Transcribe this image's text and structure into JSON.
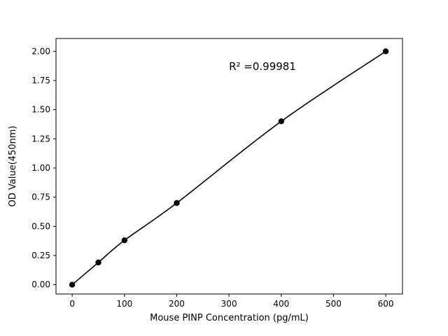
{
  "chart_data": {
    "type": "scatter",
    "title": "",
    "xlabel": "Mouse PINP Concentration (pg/mL)",
    "ylabel": "OD Value(450nm)",
    "x": [
      0,
      50,
      100,
      200,
      400,
      600
    ],
    "y": [
      0.0,
      0.19,
      0.38,
      0.7,
      1.4,
      2.0
    ],
    "xlim": [
      -31,
      632
    ],
    "ylim": [
      -0.08,
      2.11
    ],
    "xticks": [
      0,
      100,
      200,
      300,
      400,
      500,
      600
    ],
    "xticklabels": [
      "0",
      "100",
      "200",
      "300",
      "400",
      "500",
      "600"
    ],
    "yticks": [
      0.0,
      0.25,
      0.5,
      0.75,
      1.0,
      1.25,
      1.5,
      1.75,
      2.0
    ],
    "yticklabels": [
      "0.00",
      "0.25",
      "0.50",
      "0.75",
      "1.00",
      "1.25",
      "1.50",
      "1.75",
      "2.00"
    ],
    "annotation": {
      "text": "R² =0.99981",
      "x": 300,
      "y": 1.84
    },
    "legend": null,
    "grid": false,
    "line_color": "#000000",
    "marker_color": "#000000",
    "axis_color": "#000000",
    "text_color": "#000000",
    "background_color": "#ffffff"
  }
}
